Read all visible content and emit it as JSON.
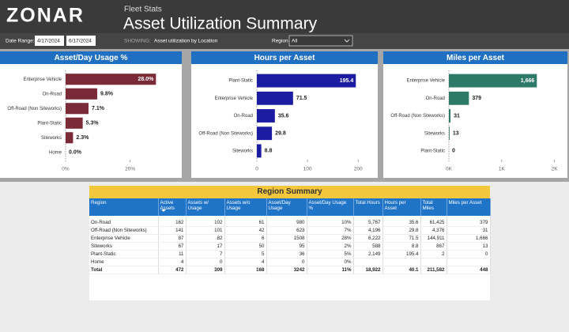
{
  "header": {
    "logo": "ZONAR",
    "subtitle": "Fleet Stats",
    "title": "Asset Utilization Summary"
  },
  "filters": {
    "date_range_label": "Date Range:",
    "start_date": "4/17/2024",
    "end_date": "6/17/2024",
    "showing_label": "SHOWING:",
    "showing": "Asset utilization by Location",
    "region_label": "Region",
    "region": "All"
  },
  "chart_data": [
    {
      "type": "hbar",
      "title": "Asset/Day Usage %",
      "categories": [
        "Enterprise Vehicle",
        "On-Road",
        "Off-Road (Non Siteworks)",
        "Plant-Static",
        "Siteworks",
        "Home"
      ],
      "values": [
        28.0,
        9.8,
        7.1,
        5.3,
        2.3,
        0.0
      ],
      "value_labels": [
        "28.0%",
        "9.8%",
        "7.1%",
        "5.3%",
        "2.3%",
        "0.0%"
      ],
      "color": "#7b2a37",
      "xlim": [
        0,
        36
      ],
      "xticks": [
        {
          "value": 0,
          "label": "0%"
        },
        {
          "value": 20,
          "label": "20%"
        }
      ]
    },
    {
      "type": "hbar",
      "title": "Hours per Asset",
      "categories": [
        "Plant-Static",
        "Enterprise Vehicle",
        "On-Road",
        "Off-Road (Non Siteworks)",
        "Siteworks"
      ],
      "values": [
        195.4,
        71.5,
        35.6,
        29.8,
        8.8
      ],
      "color": "#1c1ca3",
      "xlim": [
        0,
        234
      ],
      "xticks": [
        0,
        100,
        200
      ]
    },
    {
      "type": "hbar",
      "title": "Miles per Asset",
      "categories": [
        "Enterprise Vehicle",
        "On-Road",
        "Off-Road (Non Siteworks)",
        "Siteworks",
        "Plant-Static"
      ],
      "values": [
        1666,
        379,
        31,
        13,
        0
      ],
      "value_labels": [
        "1,666",
        "379",
        "31",
        "13",
        "0"
      ],
      "color": "#2d7a68",
      "xlim": [
        0,
        2200
      ],
      "xticks": [
        {
          "value": 0,
          "label": "0K"
        },
        {
          "value": 1000,
          "label": "1K"
        },
        {
          "value": 2000,
          "label": "2K"
        }
      ]
    }
  ],
  "table": {
    "title": "Region Summary",
    "columns": [
      "Region",
      "Active Assets",
      "Assets w/ Usage",
      "Assets w/o Usage",
      "Asset/Day Usage",
      "Asset/Day Usage %",
      "Total Hours",
      "Hours per Asset",
      "Total Miles",
      "Miles per Asset"
    ],
    "rows": [
      [
        "On-Road",
        "162",
        "102",
        "61",
        "980",
        "10%",
        "5,767",
        "35.6",
        "61,425",
        "379"
      ],
      [
        "Off-Road (Non Siteworks)",
        "141",
        "101",
        "42",
        "623",
        "7%",
        "4,196",
        "29.8",
        "4,376",
        "31"
      ],
      [
        "Enterprise Vehicle",
        "87",
        "82",
        "6",
        "1508",
        "28%",
        "6,222",
        "71.5",
        "144,911",
        "1,666"
      ],
      [
        "Siteworks",
        "67",
        "17",
        "50",
        "95",
        "2%",
        "588",
        "8.8",
        "867",
        "13"
      ],
      [
        "Plant-Static",
        "11",
        "7",
        "5",
        "36",
        "5%",
        "2,149",
        "195.4",
        "2",
        "0"
      ],
      [
        "Home",
        "4",
        "0",
        "4",
        "0",
        "0%"
      ],
      [
        "Total",
        "472",
        "309",
        "168",
        "3242",
        "11%",
        "18,922",
        "40.1",
        "211,582",
        "448"
      ]
    ]
  }
}
